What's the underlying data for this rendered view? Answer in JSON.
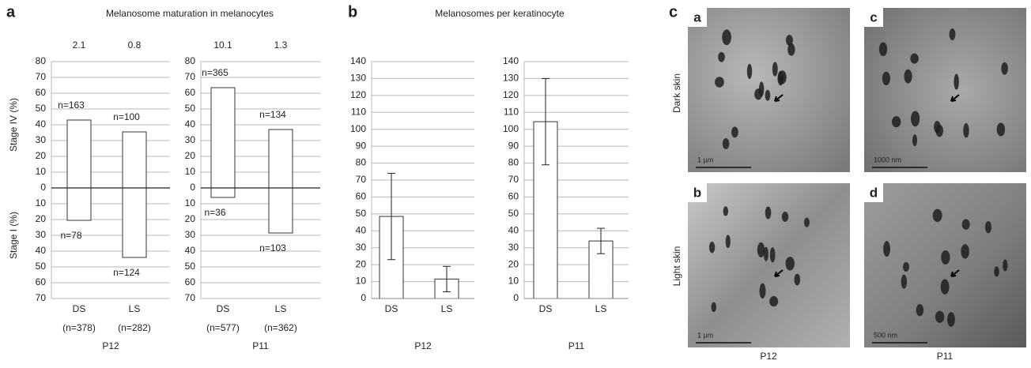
{
  "panel_labels": [
    "a",
    "b",
    "c"
  ],
  "chart_data": [
    {
      "type": "diverging_bar",
      "title": "Melanosome maturation in melanocytes",
      "ylabels": [
        "Stage IV (%)",
        "Stage I (%)"
      ],
      "categories": [
        "DS",
        "LS"
      ],
      "category_counts": [
        "(n=378)",
        "(n=282)"
      ],
      "ratios": [
        2.1,
        0.8
      ],
      "xlabel": "P12",
      "color": "#ffffff",
      "series": [
        {
          "values": [
            43,
            35.5
          ],
          "annotations": [
            "n=163",
            "n=100"
          ]
        },
        {
          "values": [
            -20.5,
            -44
          ],
          "annotations": [
            "n=78",
            "n=124"
          ]
        }
      ],
      "ylim": [
        -70,
        80
      ],
      "yticks": [
        80,
        70,
        60,
        50,
        40,
        30,
        20,
        10,
        0,
        {
          "value": -10,
          "label": "10"
        },
        {
          "value": -20,
          "label": "20"
        },
        {
          "value": -30,
          "label": "30"
        },
        {
          "value": -40,
          "label": "40"
        },
        {
          "value": -50,
          "label": "50"
        },
        {
          "value": -60,
          "label": "60"
        },
        {
          "value": -70,
          "label": "70"
        }
      ],
      "grid": true
    },
    {
      "type": "diverging_bar",
      "categories": [
        "DS",
        "LS"
      ],
      "category_counts": [
        "(n=577)",
        "(n=362)"
      ],
      "ratios": [
        10.1,
        1.3
      ],
      "xlabel": "P11",
      "color": "#ffffff",
      "series": [
        {
          "values": [
            63.5,
            37
          ],
          "annotations": [
            "n=365",
            "n=134"
          ]
        },
        {
          "values": [
            -6,
            -28.5
          ],
          "annotations": [
            "n=36",
            "n=103"
          ]
        }
      ],
      "ylim": [
        -70,
        80
      ],
      "yticks": [
        80,
        70,
        60,
        50,
        40,
        30,
        20,
        10,
        0,
        {
          "value": -10,
          "label": "10"
        },
        {
          "value": -20,
          "label": "20"
        },
        {
          "value": -30,
          "label": "30"
        },
        {
          "value": -40,
          "label": "40"
        },
        {
          "value": -50,
          "label": "50"
        },
        {
          "value": -60,
          "label": "60"
        },
        {
          "value": -70,
          "label": "70"
        }
      ],
      "grid": true
    },
    {
      "type": "error_bar",
      "title": "Melanosomes per keratinocyte",
      "categories": [
        "DS",
        "LS"
      ],
      "xlabel": "P12",
      "color": "#ffffff",
      "values": [
        48.5,
        11.5
      ],
      "errors": [
        25.5,
        7.5
      ],
      "ylim": [
        0,
        140
      ],
      "yticks": [
        0,
        10,
        20,
        30,
        40,
        50,
        60,
        70,
        80,
        90,
        100,
        110,
        120,
        130,
        140
      ],
      "grid": true
    },
    {
      "type": "error_bar",
      "categories": [
        "DS",
        "LS"
      ],
      "xlabel": "P11",
      "color": "#ffffff",
      "values": [
        104.5,
        34
      ],
      "errors": [
        25.5,
        7.5
      ],
      "ylim": [
        0,
        140
      ],
      "yticks": [
        0,
        10,
        20,
        30,
        40,
        50,
        60,
        70,
        80,
        90,
        100,
        110,
        120,
        130,
        140
      ],
      "grid": true
    }
  ],
  "micrographs": {
    "row_labels": [
      "Dark skin",
      "Light skin"
    ],
    "column_labels": [
      "P12",
      "P11"
    ],
    "images": [
      {
        "letter": "a",
        "scale": "1 µm"
      },
      {
        "letter": "c",
        "scale": "1000 nm"
      },
      {
        "letter": "b",
        "scale": "1 µm"
      },
      {
        "letter": "d",
        "scale": "500 nm"
      }
    ]
  }
}
